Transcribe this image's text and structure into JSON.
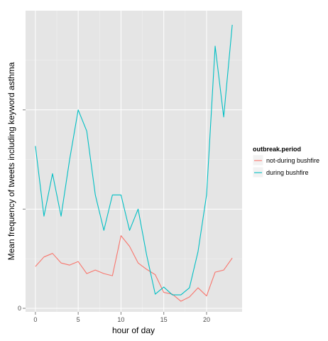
{
  "chart_data": {
    "type": "line",
    "xlabel": "hour of day",
    "ylabel": "Mean frequency of tweets including keyword asthma",
    "x": [
      0,
      1,
      2,
      3,
      4,
      5,
      6,
      7,
      8,
      9,
      10,
      11,
      12,
      13,
      14,
      15,
      16,
      17,
      18,
      19,
      20,
      21,
      22,
      23
    ],
    "xlim": [
      -1.15,
      24.15
    ],
    "ylim": [
      -0.1,
      8.4
    ],
    "x_ticks": [
      0,
      5,
      10,
      15,
      20
    ],
    "y_ticks": [
      0,
      2.8,
      5.6
    ],
    "y_tick_labels": [
      "0",
      "",
      ""
    ],
    "grid": true,
    "legend_position": "right",
    "legend_title": "outbreak.period",
    "series": [
      {
        "name": "not-during bushfire",
        "color": "#F8766D",
        "values": [
          1.18,
          1.45,
          1.55,
          1.28,
          1.22,
          1.32,
          0.98,
          1.08,
          0.98,
          0.92,
          2.05,
          1.75,
          1.28,
          1.1,
          0.95,
          0.45,
          0.4,
          0.2,
          0.32,
          0.58,
          0.35,
          1.02,
          1.08,
          1.42
        ]
      },
      {
        "name": "during bushfire",
        "color": "#00BFC4",
        "values": [
          4.58,
          2.6,
          3.8,
          2.6,
          4.2,
          5.6,
          5.0,
          3.2,
          2.2,
          3.2,
          3.2,
          2.2,
          2.8,
          1.5,
          0.4,
          0.6,
          0.38,
          0.38,
          0.58,
          1.6,
          3.2,
          7.4,
          5.4,
          8.0
        ]
      }
    ]
  }
}
